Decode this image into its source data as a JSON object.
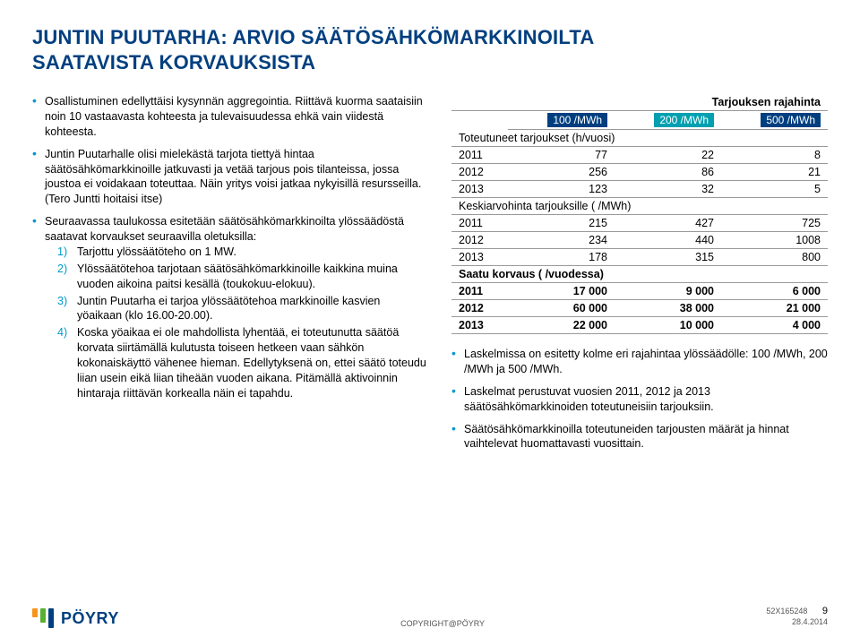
{
  "title_line1": "JUNTIN PUUTARHA: ARVIO SÄÄTÖSÄHKÖMARKKINOILTA",
  "title_line2": "SAATAVISTA KORVAUKSISTA",
  "left_bullets": [
    "Osallistuminen edellyttäisi kysynnän aggregointia. Riittävä kuorma saataisiin noin 10 vastaavasta kohteesta ja tulevaisuudessa ehkä vain viidestä kohteesta.",
    "Juntin Puutarhalle olisi mielekästä tarjota tiettyä hintaa säätösähkömarkkinoille jatkuvasti ja vetää tarjous pois tilanteissa, jossa joustoa ei voidakaan toteuttaa. Näin yritys voisi jatkaa nykyisillä resursseilla. (Tero Juntti hoitaisi itse)",
    "Seuraavassa taulukossa esitetään säätösähkömarkkinoilta ylössäädöstä saatavat korvaukset seuraavilla oletuksilla:"
  ],
  "numbered": [
    {
      "n": "1)",
      "t": "Tarjottu ylössäätöteho on 1 MW."
    },
    {
      "n": "2)",
      "t": "Ylössäätötehoa tarjotaan säätösähkömarkkinoille kaikkina muina vuoden aikoina paitsi kesällä (toukokuu-elokuu)."
    },
    {
      "n": "3)",
      "t": "Juntin Puutarha ei tarjoa ylössäätötehoa markkinoille kasvien yöaikaan (klo 16.00-20.00)."
    },
    {
      "n": "4)",
      "t": "Koska yöaikaa ei ole mahdollista lyhentää, ei toteutunutta säätöä korvata siirtämällä kulutusta toiseen hetkeen vaan sähkön kokonaiskäyttö vähenee hieman. Edellytyksenä on, ettei säätö toteudu liian usein eikä liian tiheään vuoden aikana. Pitämällä aktivoinnin hintaraja riittävän korkealla näin ei tapahdu."
    }
  ],
  "table": {
    "super_header": "Tarjouksen rajahinta",
    "price_labels": [
      "100 /MWh",
      "200 /MWh",
      "500 /MWh"
    ],
    "sections": [
      {
        "label": "Toteutuneet tarjoukset (h/vuosi)",
        "rows": [
          [
            "2011",
            "77",
            "22",
            "8"
          ],
          [
            "2012",
            "256",
            "86",
            "21"
          ],
          [
            "2013",
            "123",
            "32",
            "5"
          ]
        ],
        "bold": false
      },
      {
        "label": "Keskiarvohinta tarjouksille ( /MWh)",
        "rows": [
          [
            "2011",
            "215",
            "427",
            "725"
          ],
          [
            "2012",
            "234",
            "440",
            "1008"
          ],
          [
            "2013",
            "178",
            "315",
            "800"
          ]
        ],
        "bold": false
      },
      {
        "label": "Saatu korvaus ( /vuodessa)",
        "rows": [
          [
            "2011",
            "17 000",
            "9 000",
            "6 000"
          ],
          [
            "2012",
            "60 000",
            "38 000",
            "21 000"
          ],
          [
            "2013",
            "22 000",
            "10 000",
            "4 000"
          ]
        ],
        "bold": true
      }
    ]
  },
  "right_bullets": [
    "Laskelmissa on esitetty kolme eri rajahintaa ylössäädölle: 100 /MWh, 200 /MWh ja 500 /MWh.",
    "Laskelmat perustuvat vuosien 2011, 2012 ja 2013 säätösähkömarkkinoiden toteutuneisiin tarjouksiin.",
    "Säätösähkömarkkinoilla toteutuneiden tarjousten määrät ja hinnat vaihtelevat huomattavasti vuosittain."
  ],
  "footer": {
    "logo_text": "PÖYRY",
    "logo_bars": [
      {
        "h": 10,
        "c": "#f7941e"
      },
      {
        "h": 16,
        "c": "#5ab031"
      },
      {
        "h": 22,
        "c": "#003f7f"
      }
    ],
    "copyright": "COPYRIGHT@PÖYRY",
    "docnum": "52X165248",
    "date": "28.4.2014",
    "page": "9"
  }
}
